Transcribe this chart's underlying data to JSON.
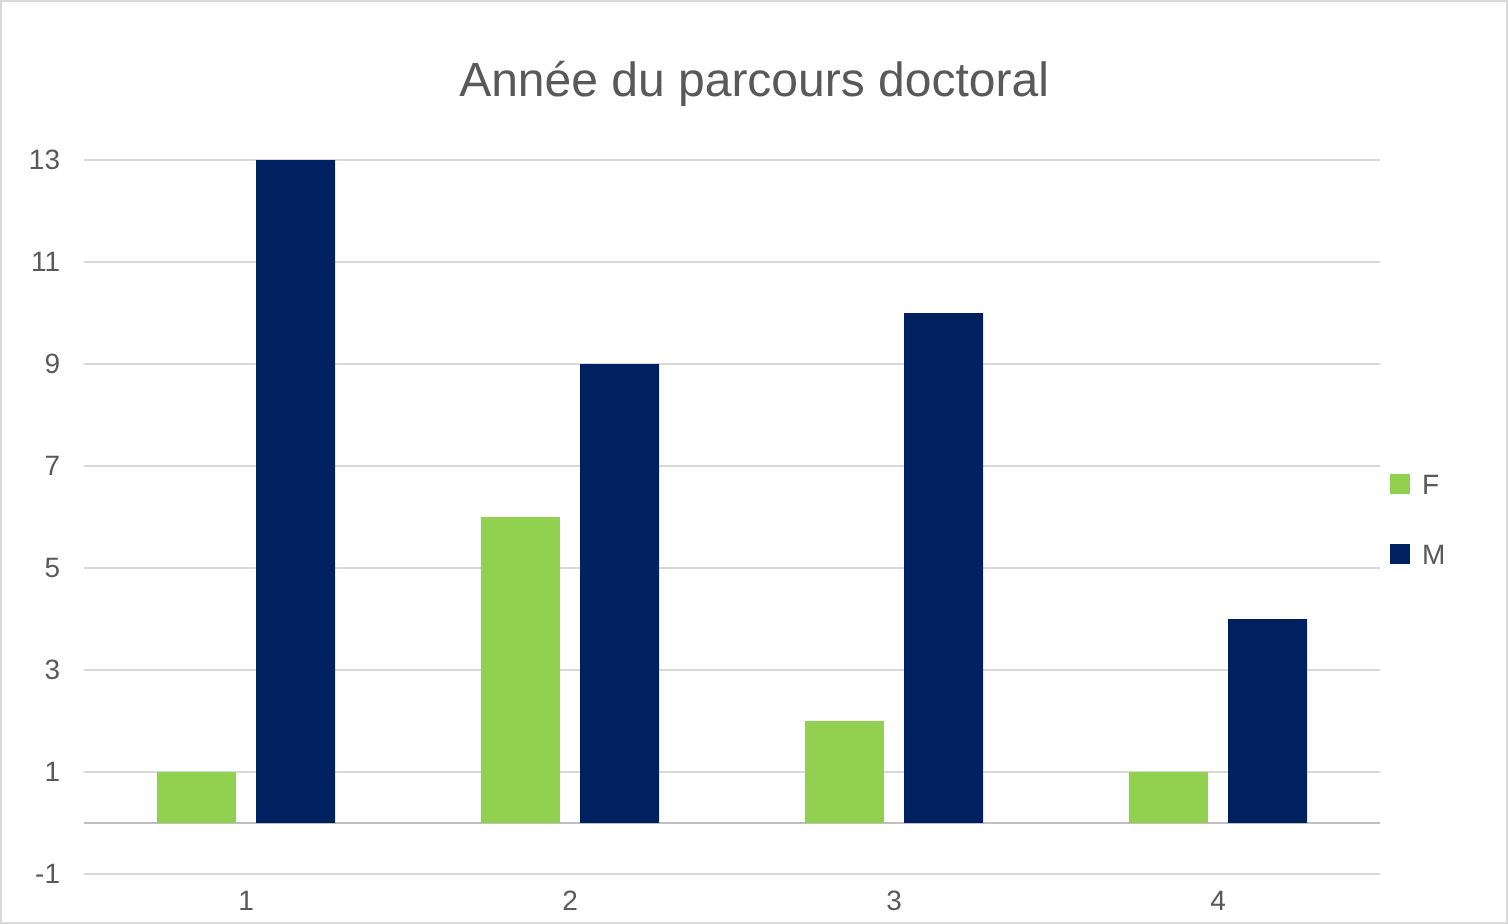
{
  "chart_data": {
    "type": "bar",
    "title": "Année du parcours doctoral",
    "categories": [
      "1",
      "2",
      "3",
      "4"
    ],
    "series": [
      {
        "name": "F",
        "color": "#92d050",
        "values": [
          1,
          6,
          2,
          1
        ]
      },
      {
        "name": "M",
        "color": "#002060",
        "values": [
          13,
          9,
          10,
          4
        ]
      }
    ],
    "ylim": [
      -1,
      13
    ],
    "yticks": [
      -1,
      1,
      3,
      5,
      7,
      9,
      11,
      13
    ],
    "grid": "y",
    "legend": "right"
  }
}
